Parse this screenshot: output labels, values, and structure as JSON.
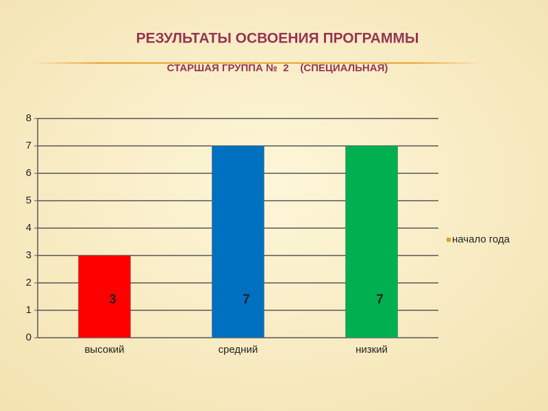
{
  "chart_data": {
    "type": "bar",
    "title": "РЕЗУЛЬТАТЫ ОСВОЕНИЯ ПРОГРАММЫ",
    "subtitle": "СТАРШАЯ ГРУППА №  2    (СПЕЦИАЛЬНАЯ)",
    "categories": [
      "высокий",
      "средний",
      "низкий"
    ],
    "series": [
      {
        "name": "начало года",
        "color": "#e0a020",
        "colors": [
          "#ff0000",
          "#0070c0",
          "#00b050"
        ],
        "values": [
          3,
          7,
          7
        ]
      }
    ],
    "ylim": [
      0,
      8
    ],
    "yticks": [
      0,
      1,
      2,
      3,
      4,
      5,
      6,
      7,
      8
    ],
    "grid": true,
    "legend": "right"
  }
}
